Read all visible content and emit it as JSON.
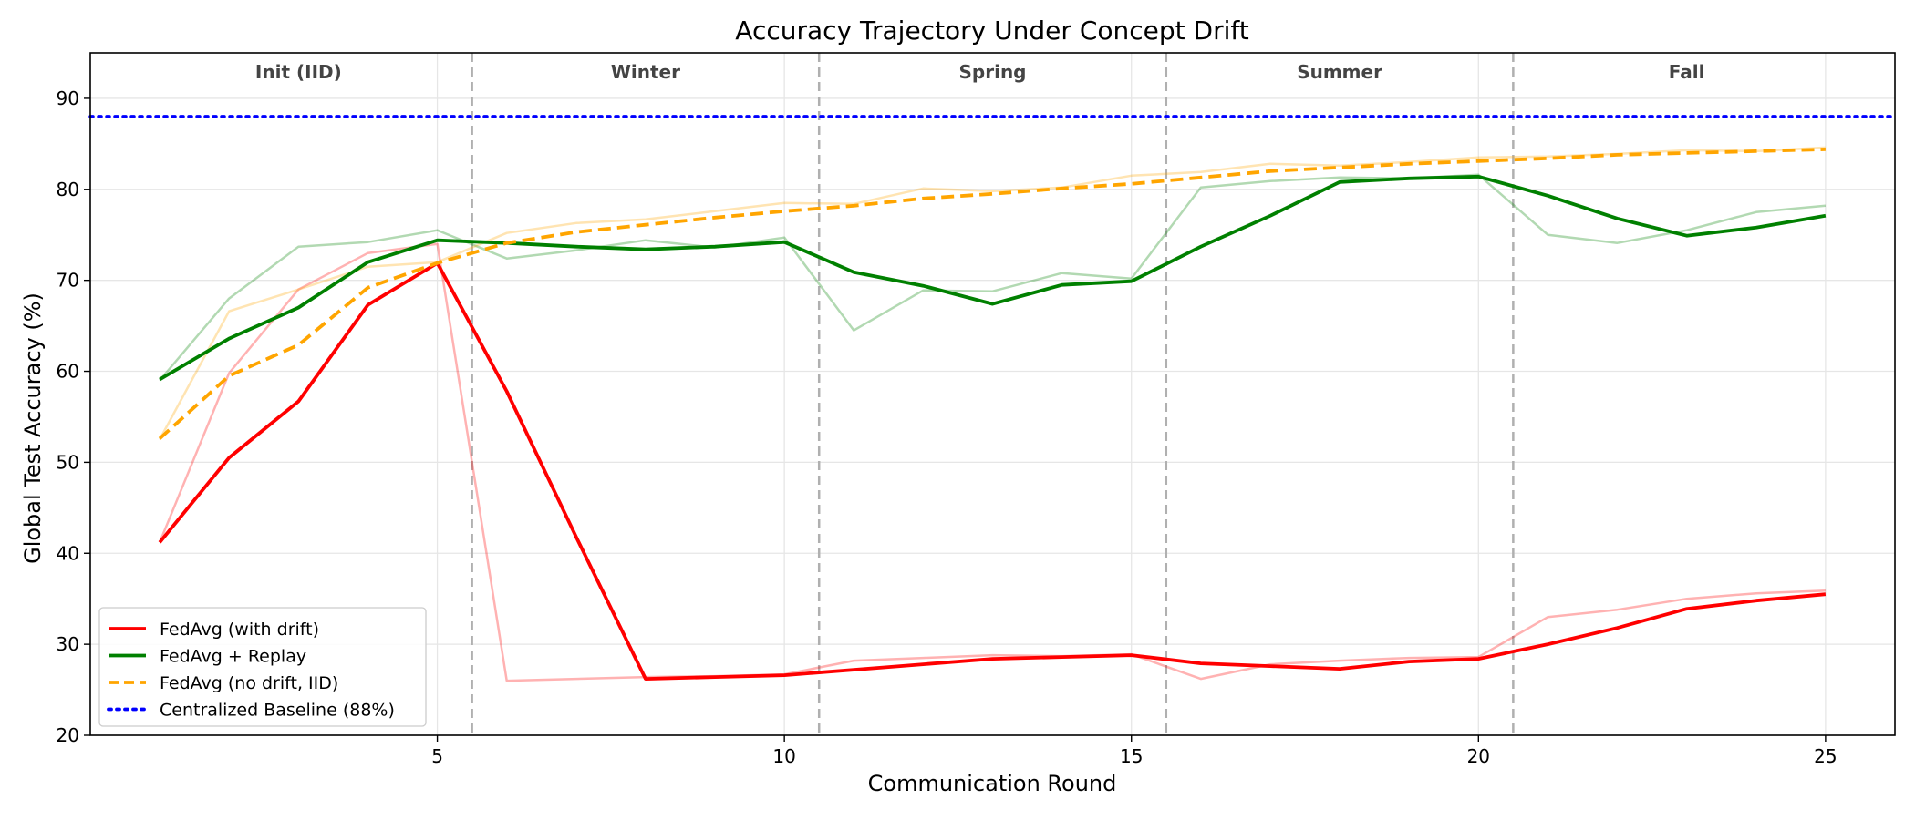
{
  "chart_data": {
    "type": "line",
    "title": "Accuracy Trajectory Under Concept Drift",
    "xlabel": "Communication Round",
    "ylabel": "Global Test Accuracy (%)",
    "xlim": [
      0,
      26
    ],
    "ylim": [
      20,
      95
    ],
    "xticks": [
      5,
      10,
      15,
      20,
      25
    ],
    "yticks": [
      20,
      30,
      40,
      50,
      60,
      70,
      80,
      90
    ],
    "grid": true,
    "legend_position": "lower-left",
    "phase_boundaries": [
      5.5,
      10.5,
      15.5,
      20.5
    ],
    "phases": [
      {
        "label": "Init (IID)",
        "x": 3.0
      },
      {
        "label": "Winter",
        "x": 8.0
      },
      {
        "label": "Spring",
        "x": 13.0
      },
      {
        "label": "Summer",
        "x": 18.0
      },
      {
        "label": "Fall",
        "x": 23.0
      }
    ],
    "x": [
      1,
      2,
      3,
      4,
      5,
      6,
      7,
      8,
      9,
      10,
      11,
      12,
      13,
      14,
      15,
      16,
      17,
      18,
      19,
      20,
      21,
      22,
      23,
      24,
      25
    ],
    "series": [
      {
        "name": "FedAvg (with drift)",
        "color": "#ff0000",
        "style": "solid",
        "raw": [
          41.2,
          59.8,
          69.0,
          73.0,
          74.0,
          26.0,
          26.2,
          26.4,
          26.5,
          26.7,
          28.2,
          28.5,
          28.8,
          28.7,
          28.9,
          26.2,
          27.8,
          28.2,
          28.5,
          28.6,
          33.0,
          33.8,
          35.0,
          35.6,
          35.9
        ],
        "values": [
          41.2,
          50.5,
          56.7,
          67.3,
          71.9,
          57.8,
          41.8,
          26.2,
          26.4,
          26.6,
          27.2,
          27.8,
          28.4,
          28.6,
          28.8,
          27.9,
          27.6,
          27.3,
          28.1,
          28.4,
          30.0,
          31.8,
          33.9,
          34.8,
          35.5
        ]
      },
      {
        "name": "FedAvg + Replay",
        "color": "#008000",
        "style": "solid",
        "raw": [
          59.0,
          68.0,
          73.7,
          74.2,
          75.5,
          72.4,
          73.3,
          74.4,
          73.6,
          74.7,
          64.5,
          68.9,
          68.8,
          70.8,
          70.2,
          80.2,
          80.9,
          81.3,
          81.2,
          81.6,
          75.0,
          74.1,
          75.5,
          77.5,
          78.2
        ],
        "values": [
          59.1,
          63.6,
          67.0,
          72.0,
          74.4,
          74.1,
          73.7,
          73.4,
          73.7,
          74.2,
          70.9,
          69.4,
          67.4,
          69.5,
          69.9,
          73.7,
          77.1,
          80.8,
          81.2,
          81.4,
          79.3,
          76.8,
          74.9,
          75.8,
          77.1
        ]
      },
      {
        "name": "FedAvg (no drift, IID)",
        "color": "#ffa500",
        "style": "dashed",
        "raw": [
          52.5,
          66.6,
          69.0,
          71.5,
          72.0,
          75.2,
          76.3,
          76.7,
          77.6,
          78.5,
          78.4,
          80.1,
          79.8,
          80.2,
          81.5,
          81.9,
          82.8,
          82.6,
          83.0,
          83.5,
          83.6,
          83.9,
          84.3,
          84.2,
          84.6
        ],
        "values": [
          52.6,
          59.5,
          62.9,
          69.2,
          71.9,
          74.1,
          75.3,
          76.1,
          76.9,
          77.6,
          78.2,
          79.0,
          79.5,
          80.1,
          80.6,
          81.3,
          82.0,
          82.4,
          82.8,
          83.1,
          83.4,
          83.8,
          84.0,
          84.2,
          84.4
        ]
      }
    ],
    "baseline": {
      "name": "Centralized Baseline (88%)",
      "value": 88,
      "color": "#0000ff",
      "style": "dotted"
    }
  }
}
